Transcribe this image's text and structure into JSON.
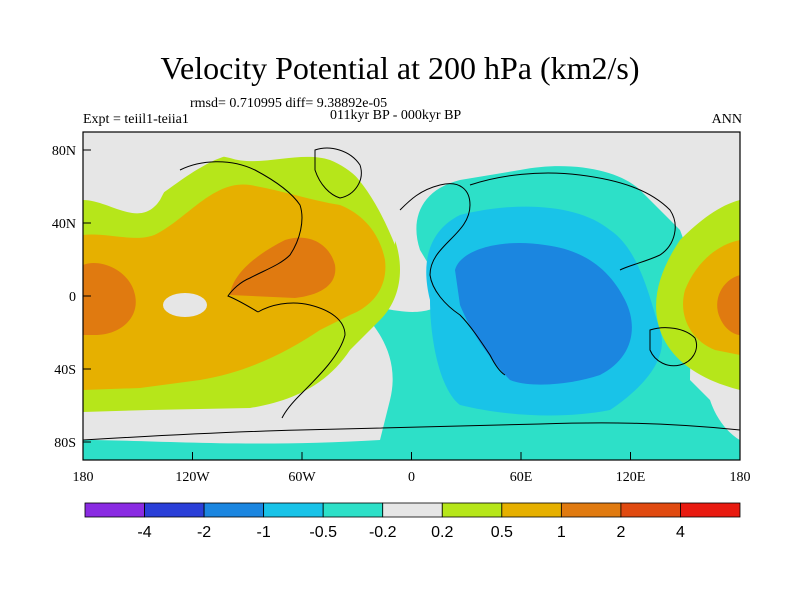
{
  "title": "Velocity Potential at 200 hPa (km2/s)",
  "stats": "rmsd= 0.710995 diff= 9.38892e-05",
  "period": "011kyr BP - 000kyr BP",
  "experiment": "Expt = teiil1-teiia1",
  "season": "ANN",
  "x_ticks": [
    "180",
    "120W",
    "60W",
    "0",
    "60E",
    "120E",
    "180"
  ],
  "y_ticks": [
    "80N",
    "40N",
    "0",
    "40S",
    "80S"
  ],
  "colorbar": {
    "labels": [
      "-4",
      "-2",
      "-1",
      "-0.5",
      "-0.2",
      "0.2",
      "0.5",
      "1",
      "2",
      "4"
    ],
    "colors": [
      "#8a2be2",
      "#2a3fd8",
      "#1b86e0",
      "#19c3e8",
      "#2de0c8",
      "#e6e6e6",
      "#b6e61a",
      "#e6b000",
      "#e07a10",
      "#e04a10",
      "#e81a10"
    ]
  },
  "fields": {
    "background": "#e6e6e6",
    "colors": {
      "yellowgreen": "#b6e61a",
      "gold": "#e6b000",
      "orange": "#e07a10",
      "teal": "#2de0c8",
      "cyan": "#19c3e8",
      "blue": "#1b86e0"
    }
  }
}
